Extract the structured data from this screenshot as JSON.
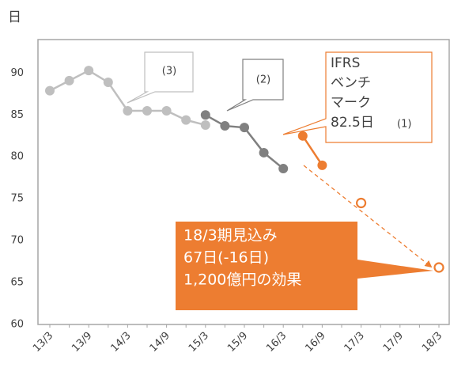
{
  "chart_data": {
    "type": "line",
    "y_unit": "日",
    "categories": [
      "13/3",
      null,
      "13/9",
      null,
      "14/3",
      null,
      "14/9",
      null,
      "15/3",
      null,
      "15/9",
      null,
      "16/3",
      null,
      "16/9",
      null,
      "17/3",
      null,
      "17/9",
      null,
      "18/3"
    ],
    "series": [
      {
        "color": "#bfbfbf",
        "values": [
          87.9,
          89.1,
          90.3,
          88.9,
          85.5,
          85.5,
          85.5,
          84.4,
          83.8,
          null,
          null,
          null,
          null,
          null,
          null,
          null,
          null,
          null,
          null,
          null,
          null
        ]
      },
      {
        "color": "#808080",
        "values": [
          null,
          null,
          null,
          null,
          null,
          null,
          null,
          null,
          85.0,
          83.7,
          83.5,
          80.5,
          78.6,
          null,
          null,
          null,
          null,
          null,
          null,
          null,
          null
        ]
      },
      {
        "color": "#ed7d31",
        "values": [
          null,
          null,
          null,
          null,
          null,
          null,
          null,
          null,
          null,
          null,
          null,
          null,
          null,
          82.5,
          79.0,
          null,
          null,
          null,
          null,
          null,
          null
        ]
      },
      {
        "color": "#ed7d31",
        "open": true,
        "values": [
          null,
          null,
          null,
          null,
          null,
          null,
          null,
          null,
          null,
          null,
          null,
          null,
          null,
          null,
          null,
          null,
          74.5,
          null,
          null,
          null,
          66.8
        ]
      }
    ],
    "ylim": [
      60,
      94
    ],
    "yticks": [
      60,
      65,
      70,
      75,
      80,
      85,
      90
    ],
    "callouts": [
      "(3)",
      "(2)"
    ],
    "ifrs_box": {
      "lines": [
        "IFRS",
        "ベンチ",
        "マーク",
        "82.5日"
      ],
      "suffix": "(1)"
    },
    "forecast_box": {
      "lines": [
        "18/3期見込み",
        "67日(-16日)",
        "1,200億円の効果"
      ]
    }
  }
}
